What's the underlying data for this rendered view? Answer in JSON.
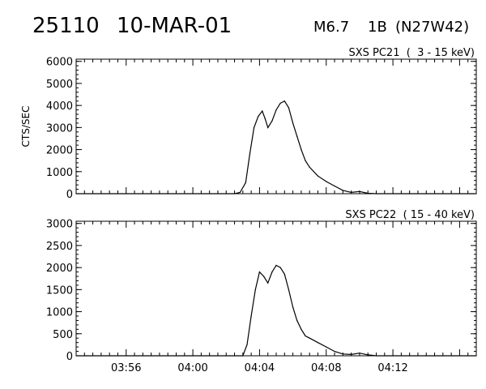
{
  "header": {
    "event_id": "25110",
    "date": "10-MAR-01",
    "flare_class": "M6.7",
    "optical_class": "1B",
    "location": "(N27W42)"
  },
  "chart_data": [
    {
      "type": "line",
      "label": "SXS PC21  (  3 - 15 keV)",
      "ylabel": "CTS/SEC",
      "ylim": [
        0,
        6100
      ],
      "yticks": [
        0,
        1000,
        2000,
        3000,
        4000,
        5000,
        6000
      ],
      "xlim": [
        "03:53",
        "04:17"
      ],
      "x_minor_step_min": 0.5,
      "series": [
        {
          "x": [
            "03:53",
            "03:56",
            "04:00",
            "04:02:30",
            "04:02:50",
            "04:03:10",
            "04:03:25",
            "04:03:40",
            "04:03:55",
            "04:04:10",
            "04:04:20",
            "04:04:30",
            "04:04:45",
            "04:05:00",
            "04:05:15",
            "04:05:30",
            "04:05:45",
            "04:06:00",
            "04:06:15",
            "04:06:30",
            "04:06:45",
            "04:07:00",
            "04:07:30",
            "04:08:00",
            "04:08:30",
            "04:09:00",
            "04:09:30",
            "04:10:00",
            "04:10:30",
            "04:11:00",
            "04:12:00",
            "04:13:00",
            "04:14:00",
            "04:17:00"
          ],
          "values": [
            0,
            0,
            0,
            0,
            60,
            500,
            1800,
            3000,
            3500,
            3750,
            3400,
            3000,
            3300,
            3800,
            4100,
            4200,
            3900,
            3200,
            2600,
            2000,
            1500,
            1200,
            800,
            550,
            350,
            150,
            60,
            100,
            20,
            0,
            0,
            0,
            0,
            0
          ]
        }
      ]
    },
    {
      "type": "line",
      "label": "SXS PC22  ( 15 - 40 keV)",
      "ylabel": "",
      "ylim": [
        0,
        3050
      ],
      "yticks": [
        0,
        500,
        1000,
        1500,
        2000,
        2500,
        3000
      ],
      "xlim": [
        "03:53",
        "04:17"
      ],
      "xticks": [
        "03:56",
        "04:00",
        "04:04",
        "04:08",
        "04:12"
      ],
      "series": [
        {
          "x": [
            "03:53",
            "03:56",
            "04:00",
            "04:03:00",
            "04:03:15",
            "04:03:30",
            "04:03:45",
            "04:04:00",
            "04:04:15",
            "04:04:30",
            "04:04:45",
            "04:05:00",
            "04:05:15",
            "04:05:30",
            "04:05:45",
            "04:06:00",
            "04:06:15",
            "04:06:30",
            "04:06:45",
            "04:07:00",
            "04:07:30",
            "04:08:00",
            "04:08:30",
            "04:09:00",
            "04:09:30",
            "04:10:00",
            "04:10:30",
            "04:11:00",
            "04:12:00",
            "04:13:00",
            "04:14:00",
            "04:17:00"
          ],
          "values": [
            0,
            0,
            0,
            0,
            250,
            900,
            1500,
            1900,
            1800,
            1650,
            1900,
            2050,
            2000,
            1850,
            1500,
            1100,
            800,
            600,
            450,
            400,
            300,
            200,
            100,
            40,
            30,
            60,
            20,
            0,
            0,
            0,
            0,
            0
          ]
        }
      ]
    }
  ]
}
